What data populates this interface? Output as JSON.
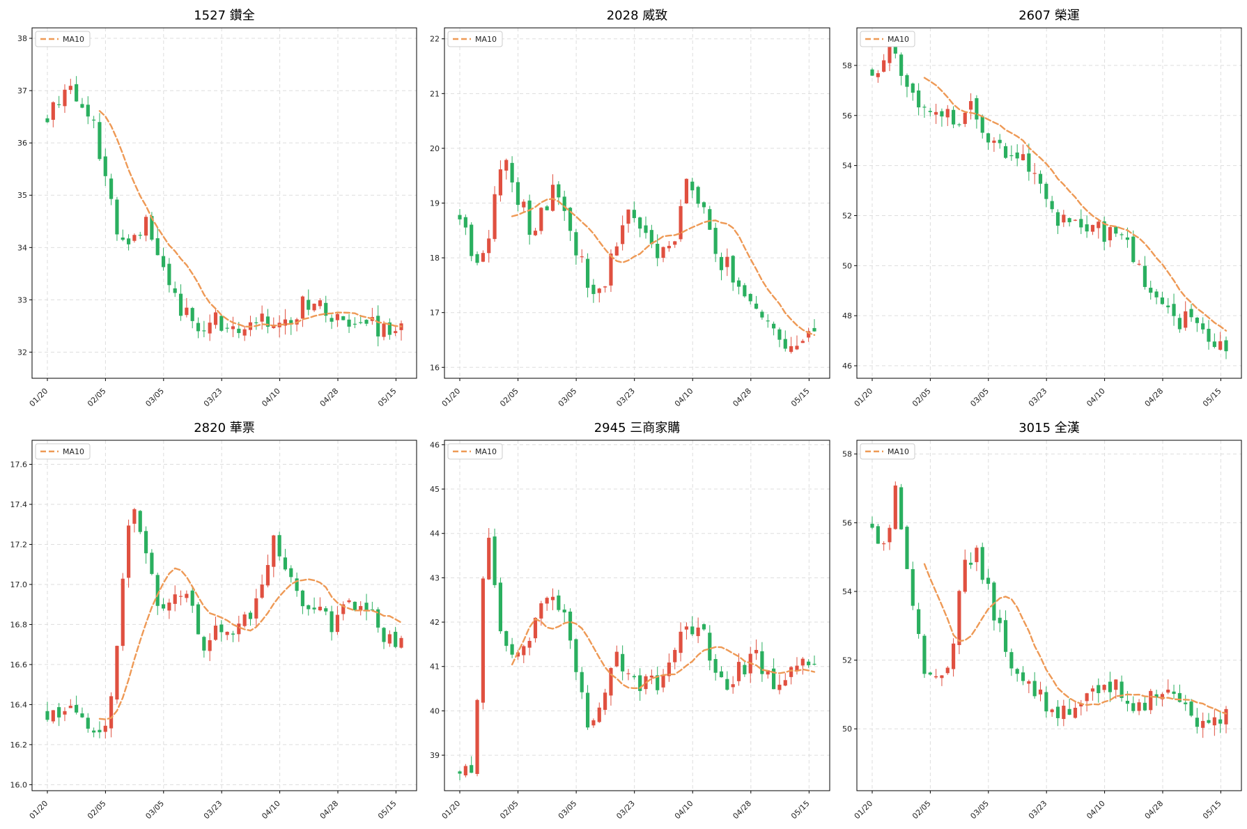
{
  "colors": {
    "up": "#e05040",
    "down": "#2aaf5f",
    "ma": "#ee9955",
    "grid": "#dddddd"
  },
  "chart_data": [
    {
      "type": "candlestick",
      "title": "1527 鑽全",
      "legend": "MA10",
      "legend_position": "upper-left",
      "grid": true,
      "xticks": [
        "01/20",
        "02/05",
        "03/05",
        "03/23",
        "04/10",
        "04/28",
        "05/15"
      ],
      "yticks": [
        32,
        33,
        34,
        35,
        36,
        37,
        38
      ],
      "ylim": [
        31.5,
        38.2
      ],
      "anchors": [
        [
          0,
          36.5
        ],
        [
          3,
          37.2
        ],
        [
          6,
          36.5
        ],
        [
          8,
          35.6
        ],
        [
          10,
          34.1
        ],
        [
          12,
          34.3
        ],
        [
          14,
          34.5
        ],
        [
          16,
          33.9
        ],
        [
          18,
          33.0
        ],
        [
          20,
          32.6
        ],
        [
          22,
          32.4
        ],
        [
          24,
          32.7
        ],
        [
          26,
          32.3
        ],
        [
          28,
          32.5
        ],
        [
          30,
          32.7
        ],
        [
          33,
          32.4
        ],
        [
          36,
          32.9
        ],
        [
          38,
          33.1
        ],
        [
          40,
          32.6
        ],
        [
          43,
          32.4
        ],
        [
          46,
          32.6
        ],
        [
          48,
          32.3
        ],
        [
          50,
          32.5
        ],
        [
          52,
          32.4
        ],
        [
          54,
          32.2
        ],
        [
          56,
          32.3
        ]
      ],
      "ma_start": 9,
      "seed": 11
    },
    {
      "type": "candlestick",
      "title": "2028 威致",
      "legend": "MA10",
      "legend_position": "upper-left",
      "grid": true,
      "xticks": [
        "01/20",
        "02/05",
        "03/05",
        "03/23",
        "04/10",
        "04/28",
        "05/15"
      ],
      "yticks": [
        16,
        17,
        18,
        19,
        20,
        21,
        22
      ],
      "ylim": [
        15.8,
        22.2
      ],
      "anchors": [
        [
          0,
          18.8
        ],
        [
          2,
          18.0
        ],
        [
          4,
          18.3
        ],
        [
          6,
          20.0
        ],
        [
          8,
          19.2
        ],
        [
          10,
          18.5
        ],
        [
          12,
          19.0
        ],
        [
          14,
          19.3
        ],
        [
          16,
          18.2
        ],
        [
          18,
          17.6
        ],
        [
          20,
          17.4
        ],
        [
          22,
          18.3
        ],
        [
          24,
          18.9
        ],
        [
          26,
          18.4
        ],
        [
          28,
          18.0
        ],
        [
          30,
          18.3
        ],
        [
          32,
          19.3
        ],
        [
          34,
          19.0
        ],
        [
          36,
          18.0
        ],
        [
          38,
          17.8
        ],
        [
          40,
          17.3
        ],
        [
          42,
          17.2
        ],
        [
          44,
          16.8
        ],
        [
          46,
          16.4
        ],
        [
          48,
          16.5
        ]
      ],
      "ma_start": 9,
      "seed": 23
    },
    {
      "type": "candlestick",
      "title": "2607 榮運",
      "legend": "MA10",
      "legend_position": "upper-left",
      "grid": true,
      "xticks": [
        "01/20",
        "02/05",
        "03/05",
        "03/23",
        "04/10",
        "04/28",
        "05/15"
      ],
      "yticks": [
        46,
        48,
        50,
        52,
        54,
        56,
        58
      ],
      "ylim": [
        45.5,
        59.5
      ],
      "anchors": [
        [
          0,
          57.8
        ],
        [
          3,
          58.8
        ],
        [
          5,
          57.2
        ],
        [
          8,
          56.3
        ],
        [
          12,
          55.9
        ],
        [
          14,
          56.3
        ],
        [
          16,
          55.4
        ],
        [
          18,
          54.8
        ],
        [
          20,
          54.5
        ],
        [
          23,
          53.7
        ],
        [
          25,
          52.2
        ],
        [
          28,
          51.6
        ],
        [
          30,
          51.8
        ],
        [
          33,
          51.3
        ],
        [
          36,
          50.8
        ],
        [
          38,
          49.8
        ],
        [
          40,
          48.6
        ],
        [
          42,
          48.0
        ],
        [
          44,
          47.8
        ],
        [
          46,
          48.0
        ],
        [
          48,
          47.0
        ],
        [
          50,
          46.8
        ]
      ],
      "ma_start": 9,
      "seed": 37
    },
    {
      "type": "candlestick",
      "title": "2820 華票",
      "legend": "MA10",
      "legend_position": "upper-left",
      "grid": true,
      "xticks": [
        "01/20",
        "02/05",
        "03/05",
        "03/23",
        "04/10",
        "04/28",
        "05/15"
      ],
      "yticks": [
        16.0,
        16.2,
        16.4,
        16.6,
        16.8,
        17.0,
        17.2,
        17.4,
        17.6
      ],
      "ylim": [
        15.97,
        17.72
      ],
      "anchors": [
        [
          0,
          16.35
        ],
        [
          3,
          16.35
        ],
        [
          5,
          16.3
        ],
        [
          7,
          16.2
        ],
        [
          9,
          16.4
        ],
        [
          11,
          17.1
        ],
        [
          12,
          17.4
        ],
        [
          14,
          17.1
        ],
        [
          16,
          16.9
        ],
        [
          18,
          17.0
        ],
        [
          20,
          16.9
        ],
        [
          22,
          16.7
        ],
        [
          24,
          16.75
        ],
        [
          26,
          16.8
        ],
        [
          28,
          16.8
        ],
        [
          30,
          17.0
        ],
        [
          32,
          17.2
        ],
        [
          34,
          17.1
        ],
        [
          36,
          16.9
        ],
        [
          38,
          16.9
        ],
        [
          40,
          16.8
        ],
        [
          42,
          16.9
        ],
        [
          44,
          16.9
        ],
        [
          46,
          16.85
        ],
        [
          48,
          16.7
        ],
        [
          50,
          16.75
        ]
      ],
      "ma_start": 9,
      "seed": 41
    },
    {
      "type": "candlestick",
      "title": "2945 三商家購",
      "legend": "MA10",
      "legend_position": "upper-left",
      "grid": true,
      "xticks": [
        "01/20",
        "02/05",
        "03/05",
        "03/23",
        "04/10",
        "04/28",
        "05/15"
      ],
      "yticks": [
        39,
        40,
        41,
        42,
        43,
        44,
        45,
        46
      ],
      "ylim": [
        38.2,
        46.1
      ],
      "anchors": [
        [
          0,
          38.7
        ],
        [
          2,
          38.6
        ],
        [
          3,
          42.3
        ],
        [
          4,
          44.2
        ],
        [
          6,
          41.5
        ],
        [
          8,
          41.5
        ],
        [
          10,
          41.8
        ],
        [
          12,
          42.6
        ],
        [
          14,
          42.4
        ],
        [
          16,
          41.3
        ],
        [
          18,
          39.7
        ],
        [
          20,
          40.2
        ],
        [
          22,
          41.2
        ],
        [
          24,
          40.6
        ],
        [
          26,
          40.6
        ],
        [
          28,
          40.7
        ],
        [
          30,
          41.2
        ],
        [
          32,
          42.0
        ],
        [
          34,
          41.8
        ],
        [
          36,
          41.0
        ],
        [
          38,
          40.6
        ],
        [
          40,
          41.0
        ],
        [
          42,
          41.2
        ],
        [
          44,
          40.6
        ],
        [
          46,
          40.8
        ],
        [
          48,
          41.0
        ]
      ],
      "ma_start": 9,
      "seed": 53
    },
    {
      "type": "candlestick",
      "title": "3015 全漢",
      "legend": "MA10",
      "legend_position": "upper-left",
      "grid": true,
      "xticks": [
        "01/20",
        "02/05",
        "03/05",
        "03/23",
        "04/10",
        "04/28",
        "05/15"
      ],
      "yticks": [
        50,
        52,
        54,
        56,
        58
      ],
      "ylim": [
        48.2,
        58.4
      ],
      "anchors": [
        [
          0,
          56.0
        ],
        [
          2,
          55.2
        ],
        [
          3,
          57.2
        ],
        [
          5,
          54.3
        ],
        [
          7,
          52.0
        ],
        [
          9,
          51.5
        ],
        [
          11,
          52.0
        ],
        [
          13,
          55.1
        ],
        [
          15,
          55.0
        ],
        [
          17,
          53.5
        ],
        [
          19,
          52.3
        ],
        [
          21,
          51.2
        ],
        [
          23,
          51.0
        ],
        [
          25,
          50.7
        ],
        [
          27,
          50.4
        ],
        [
          29,
          50.8
        ],
        [
          31,
          51.1
        ],
        [
          33,
          51.3
        ],
        [
          35,
          51.2
        ],
        [
          37,
          50.5
        ],
        [
          39,
          50.8
        ],
        [
          41,
          51.2
        ],
        [
          43,
          50.9
        ],
        [
          45,
          50.4
        ],
        [
          47,
          50.1
        ],
        [
          49,
          50.3
        ]
      ],
      "ma_start": 9,
      "seed": 67
    }
  ]
}
